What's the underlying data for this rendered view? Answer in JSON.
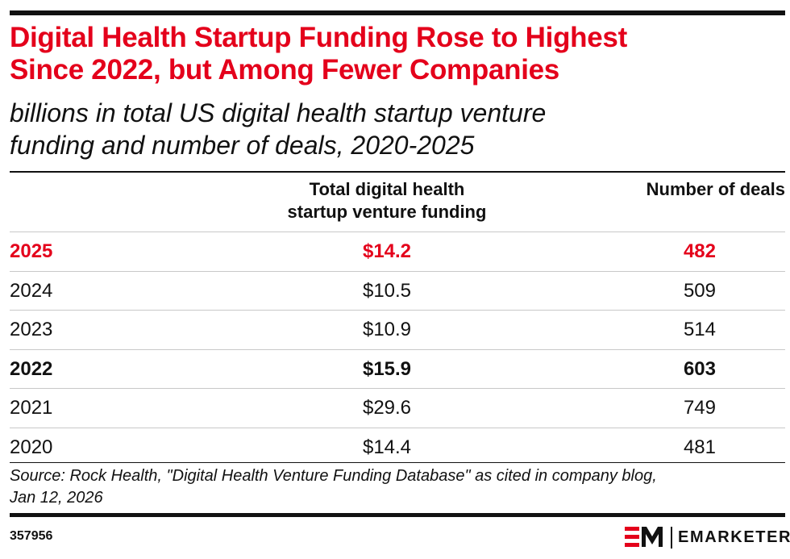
{
  "title_lines": [
    "Digital Health Startup Funding Rose to Highest",
    "Since 2022, but Among Fewer Companies"
  ],
  "subtitle_lines": [
    "billions in total US digital health startup venture",
    "funding and number of deals, 2020-2025"
  ],
  "chart_data": {
    "type": "table",
    "columns": [
      "",
      "Total digital health startup venture funding",
      "Number of deals"
    ],
    "column_header_lines": {
      "funding": [
        "Total digital health",
        "startup venture funding"
      ],
      "deals": [
        "Number of deals"
      ]
    },
    "rows": [
      {
        "year": "2025",
        "funding": "$14.2",
        "deals": "482",
        "style": "highlight"
      },
      {
        "year": "2024",
        "funding": "$10.5",
        "deals": "509",
        "style": "normal"
      },
      {
        "year": "2023",
        "funding": "$10.9",
        "deals": "514",
        "style": "normal"
      },
      {
        "year": "2022",
        "funding": "$15.9",
        "deals": "603",
        "style": "bold"
      },
      {
        "year": "2021",
        "funding": "$29.6",
        "deals": "749",
        "style": "normal"
      },
      {
        "year": "2020",
        "funding": "$14.4",
        "deals": "481",
        "style": "normal"
      }
    ],
    "funding_values": [
      14.2,
      10.5,
      10.9,
      15.9,
      29.6,
      14.4
    ],
    "deal_values": [
      482,
      509,
      514,
      603,
      749,
      481
    ],
    "years": [
      "2025",
      "2024",
      "2023",
      "2022",
      "2021",
      "2020"
    ]
  },
  "source_lines": [
    "Source: Rock Health, \"Digital Health Venture Funding Database\" as cited in company blog,",
    "Jan 12, 2026"
  ],
  "chart_id": "357956",
  "brand": {
    "name": "EMARKETER",
    "logo_icon": "em-logo-icon"
  },
  "colors": {
    "accent": "#e4001b",
    "text": "#111111",
    "rule": "#c8c8c8"
  }
}
